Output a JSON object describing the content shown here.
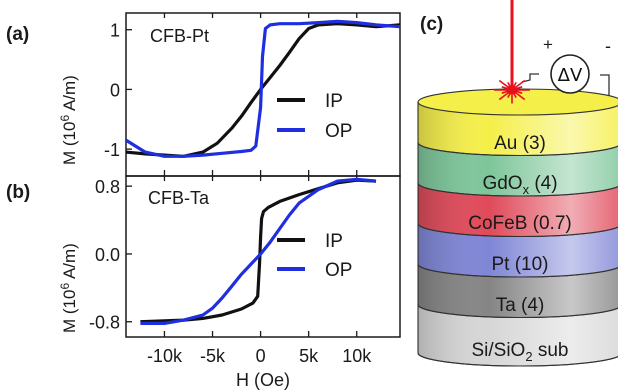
{
  "panel_labels": {
    "a": "(a)",
    "b": "(b)",
    "c": "(c)"
  },
  "shared_x_axis": {
    "label": "H (Oe)",
    "ticks": [
      {
        "v": -10000,
        "label": "-10k"
      },
      {
        "v": -5000,
        "label": "-5k"
      },
      {
        "v": 0,
        "label": "0"
      },
      {
        "v": 5000,
        "label": "5k"
      },
      {
        "v": 10000,
        "label": "10k"
      }
    ]
  },
  "chart_data": [
    {
      "id": "a",
      "type": "line",
      "title": "CFB-Pt",
      "ylabel": {
        "pre": "M (10",
        "sup": "6",
        "post": " A/m)"
      },
      "xlim": [
        -14000,
        14500
      ],
      "ylim": [
        -1.45,
        1.28
      ],
      "yticks": [
        {
          "v": 1,
          "label": "1"
        },
        {
          "v": 0,
          "label": "0"
        },
        {
          "v": -1,
          "label": "-1"
        }
      ],
      "legend": "center-right",
      "series": [
        {
          "name": "IP",
          "color": "#111111",
          "x": [
            -14000,
            -12000,
            -10000,
            -8000,
            -6000,
            -4500,
            -3000,
            -2000,
            -1000,
            0,
            1000,
            2000,
            3000,
            4000,
            5000,
            6000,
            8000,
            10000,
            12000,
            14500
          ],
          "y": [
            -1.05,
            -1.08,
            -1.1,
            -1.12,
            -1.05,
            -0.9,
            -0.65,
            -0.45,
            -0.22,
            0.0,
            0.2,
            0.4,
            0.62,
            0.85,
            1.02,
            1.08,
            1.1,
            1.08,
            1.05,
            1.08
          ]
        },
        {
          "name": "OP",
          "color": "#1f2fe0",
          "x": [
            -14000,
            -12000,
            -10000,
            -8000,
            -6000,
            -4000,
            -2000,
            -1000,
            -500,
            0,
            200,
            500,
            1000,
            2000,
            4000,
            6000,
            8000,
            10000,
            12000,
            14500
          ],
          "y": [
            -0.85,
            -1.05,
            -1.12,
            -1.12,
            -1.1,
            -1.07,
            -1.04,
            -1.02,
            -0.95,
            -0.3,
            0.55,
            1.02,
            1.08,
            1.1,
            1.1,
            1.12,
            1.14,
            1.12,
            1.08,
            1.05
          ]
        }
      ]
    },
    {
      "id": "b",
      "type": "line",
      "title": "CFB-Ta",
      "ylabel": {
        "pre": "M (10",
        "sup": "6",
        "post": " A/m)"
      },
      "xlim": [
        -14000,
        14500
      ],
      "ylim": [
        -0.98,
        0.92
      ],
      "yticks": [
        {
          "v": 0.8,
          "label": "0.8"
        },
        {
          "v": 0.0,
          "label": "0.0"
        },
        {
          "v": -0.8,
          "label": "-0.8"
        }
      ],
      "legend": "center-right",
      "series": [
        {
          "name": "IP",
          "color": "#111111",
          "x": [
            -12500,
            -10000,
            -8000,
            -6000,
            -4000,
            -2000,
            -800,
            -300,
            -100,
            0,
            100,
            300,
            800,
            2000,
            4000,
            6000,
            8000,
            10000,
            12000
          ],
          "y": [
            -0.8,
            -0.79,
            -0.78,
            -0.76,
            -0.72,
            -0.65,
            -0.58,
            -0.5,
            -0.1,
            0.2,
            0.42,
            0.5,
            0.55,
            0.62,
            0.7,
            0.77,
            0.84,
            0.87,
            0.86
          ]
        },
        {
          "name": "OP",
          "color": "#1f2fe0",
          "x": [
            -12500,
            -10000,
            -8000,
            -6000,
            -5000,
            -4000,
            -3000,
            -2000,
            -1000,
            0,
            1000,
            2000,
            3000,
            4000,
            6000,
            8000,
            10000,
            12000
          ],
          "y": [
            -0.82,
            -0.82,
            -0.78,
            -0.72,
            -0.64,
            -0.52,
            -0.38,
            -0.24,
            -0.12,
            0.0,
            0.14,
            0.3,
            0.46,
            0.6,
            0.76,
            0.86,
            0.88,
            0.86
          ]
        }
      ]
    }
  ],
  "device": {
    "layers": [
      {
        "label": "Au (3)",
        "color": "#f5ef4a"
      },
      {
        "label": "GdOx (4)",
        "color": "#7ec69a"
      },
      {
        "label": "CoFeB (0.7)",
        "color": "#e04a5a"
      },
      {
        "label": "Pt (10)",
        "color": "#7f86d6"
      },
      {
        "label": "Ta (4)",
        "color": "#858585"
      },
      {
        "label": "Si/SiO2 sub",
        "color": "#d6d6d6"
      }
    ],
    "gdox_parts": {
      "main": "GdO",
      "sub": "x",
      "rest": " (4)"
    },
    "substrate_parts": {
      "main": "Si/SiO",
      "sub": "2",
      "rest": " sub"
    },
    "voltmeter_label": "ΔV",
    "plus_sign": "+",
    "minus_sign": "-",
    "laser_color": "#e8101c"
  }
}
